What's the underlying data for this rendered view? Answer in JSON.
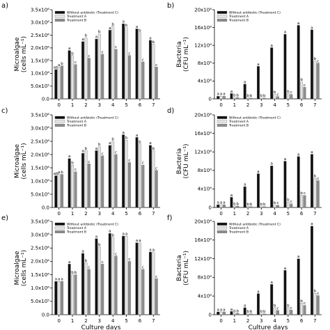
{
  "colors": {
    "treatment_c": "#111111",
    "treatment_a": "#e3e3e3",
    "treatment_b": "#8c8c8c",
    "bar_edge": "#555555"
  },
  "chart_data": [
    {
      "panel": "a)",
      "type": "bar",
      "ylabel": "Microalgae",
      "yunit": "(cells mL⁻¹)",
      "ylim": [
        0,
        3500000
      ],
      "yticks": [
        "0.0",
        "5.0x10⁵",
        "1.0x10⁶",
        "1.5x10⁶",
        "2.0x10⁶",
        "2.5x10⁶",
        "3.0x10⁶",
        "3.5x10⁶"
      ],
      "legend": [
        "Without antibiotic (Treatment C)",
        "Treatment A",
        "Treatment B"
      ],
      "categories": [
        "0",
        "1",
        "2",
        "3",
        "4",
        "5",
        "6",
        "7"
      ],
      "series": [
        {
          "name": "Without antibiotic (Treatment C)",
          "values": [
            1150000,
            1900000,
            2250000,
            2350000,
            2700000,
            2950000,
            2750000,
            2300000
          ],
          "labels": [
            "ab",
            "a",
            "a",
            "a",
            "a",
            "a",
            "a",
            "a"
          ]
        },
        {
          "name": "Treatment A",
          "values": [
            1250000,
            1700000,
            2400000,
            2550000,
            2850000,
            2800000,
            2600000,
            2150000
          ],
          "labels": [
            "a",
            "b",
            "b",
            "b",
            "b",
            "b",
            "b",
            "b"
          ]
        },
        {
          "name": "Treatment B",
          "values": [
            1300000,
            1350000,
            1600000,
            1750000,
            1950000,
            1700000,
            1450000,
            1250000
          ],
          "labels": [
            "b",
            "c",
            "c",
            "c",
            "c",
            "c",
            "c",
            "c"
          ]
        }
      ]
    },
    {
      "panel": "b)",
      "type": "bar",
      "ylabel": "Bacteria",
      "yunit": "(CFU mL⁻¹)",
      "ylim": [
        0,
        20000000
      ],
      "yticks": [
        "0",
        "4x10⁶",
        "8x10⁶",
        "12x10⁶",
        "16x10⁶",
        "20x10⁶"
      ],
      "legend": [
        "Without antibiotic (Treatment C)",
        "Treatment A",
        "Treatment B"
      ],
      "categories": [
        "0",
        "1",
        "2",
        "3",
        "4",
        "5",
        "6",
        "7"
      ],
      "series": [
        {
          "name": "Without antibiotic (Treatment C)",
          "values": [
            600000,
            1200000,
            3300000,
            7300000,
            11500000,
            14500000,
            16500000,
            15500000
          ],
          "labels": [
            "a",
            "a",
            "a",
            "a",
            "a",
            "a",
            "a",
            "a"
          ]
        },
        {
          "name": "Treatment A",
          "values": [
            600000,
            300000,
            200000,
            200000,
            1000000,
            1200000,
            3800000,
            8500000
          ],
          "labels": [
            "a",
            "b",
            "b",
            "b",
            "b",
            "b",
            "b",
            "b"
          ]
        },
        {
          "name": "Treatment B",
          "values": [
            600000,
            300000,
            200000,
            200000,
            500000,
            1000000,
            2600000,
            8000000
          ],
          "labels": [
            "a",
            "b",
            "b",
            "b",
            "c",
            "c",
            "c",
            "c"
          ]
        }
      ]
    },
    {
      "panel": "c)",
      "type": "bar",
      "ylabel": "Microalgae",
      "yunit": "(cells mL⁻¹)",
      "ylim": [
        0,
        3500000
      ],
      "yticks": [
        "0.0",
        "5.0x10⁵",
        "1.0x10⁶",
        "1.5x10⁶",
        "2.0x10⁶",
        "2.5x10⁶",
        "3.0x10⁶",
        "3.5x10⁶"
      ],
      "legend": [
        "Without antibiotic (Treatment C)",
        "Treatment A",
        "Treatment B"
      ],
      "categories": [
        "0",
        "1",
        "2",
        "3",
        "4",
        "5",
        "6",
        "7"
      ],
      "series": [
        {
          "name": "Without antibiotic (Treatment C)",
          "values": [
            1200000,
            1850000,
            2050000,
            2150000,
            2350000,
            2750000,
            2650000,
            2350000
          ],
          "labels": [
            "ab",
            "a",
            "a",
            "a",
            "a",
            "a",
            "a",
            "a"
          ]
        },
        {
          "name": "Treatment A",
          "values": [
            1250000,
            1600000,
            2150000,
            2300000,
            2500000,
            2550000,
            2400000,
            2150000
          ],
          "labels": [
            "a",
            "b",
            "b",
            "b",
            "b",
            "b",
            "b",
            "b"
          ]
        },
        {
          "name": "Treatment B",
          "values": [
            1250000,
            1350000,
            1650000,
            1950000,
            2000000,
            1700000,
            1600000,
            1400000
          ],
          "labels": [
            "b",
            "c",
            "c",
            "c",
            "c",
            "c",
            "c",
            "c"
          ]
        }
      ]
    },
    {
      "panel": "d)",
      "type": "bar",
      "ylabel": "Bacteria",
      "yunit": "(CFU mL⁻¹)",
      "ylim": [
        0,
        20000000
      ],
      "yticks": [
        "0",
        "4x10⁶",
        "8x10⁶",
        "12x10⁶",
        "16x10⁶",
        "20x10⁶"
      ],
      "legend": [
        "Without antibiotic (Treatment C)",
        "Treatment A",
        "Treatment B"
      ],
      "categories": [
        "0",
        "1",
        "2",
        "3",
        "4",
        "5",
        "6",
        "7"
      ],
      "series": [
        {
          "name": "Without antibiotic (Treatment C)",
          "values": [
            600000,
            2200000,
            4500000,
            7300000,
            9000000,
            10000000,
            11000000,
            11500000
          ],
          "labels": [
            "a",
            "a",
            "a",
            "a",
            "a",
            "a",
            "a",
            "a"
          ]
        },
        {
          "name": "Treatment A",
          "values": [
            600000,
            300000,
            200000,
            200000,
            500000,
            1200000,
            2600000,
            6300000
          ],
          "labels": [
            "a",
            "b",
            "b",
            "b",
            "b",
            "b",
            "b",
            "b"
          ]
        },
        {
          "name": "Treatment B",
          "values": [
            600000,
            300000,
            200000,
            200000,
            500000,
            800000,
            2600000,
            5800000
          ],
          "labels": [
            "a",
            "b",
            "b",
            "b",
            "c",
            "c",
            "c",
            "c"
          ]
        }
      ]
    },
    {
      "panel": "e)",
      "type": "bar",
      "ylabel": "Microalgae",
      "yunit": "(cells mL⁻¹)",
      "ylim": [
        0,
        3500000
      ],
      "yticks": [
        "0.0",
        "5.0x10⁵",
        "1.0x10⁶",
        "1.5x10⁶",
        "2.0x10⁶",
        "2.5x10⁶",
        "3.0x10⁶",
        "3.5x10⁶"
      ],
      "legend": [
        "Without antibiotic (Treatment C)",
        "Treatment A",
        "Treatment B"
      ],
      "categories": [
        "0",
        "1",
        "2",
        "3",
        "4",
        "5",
        "6",
        "7"
      ],
      "series": [
        {
          "name": "Without antibiotic (Treatment C)",
          "values": [
            1250000,
            1900000,
            2300000,
            2850000,
            3050000,
            2950000,
            2700000,
            2350000
          ],
          "labels": [
            "a",
            "a",
            "a",
            "a",
            "a",
            "a",
            "a",
            "a"
          ]
        },
        {
          "name": "Treatment A",
          "values": [
            1250000,
            1500000,
            1950000,
            2550000,
            2900000,
            2950000,
            2700000,
            2350000
          ],
          "labels": [
            "a",
            "b",
            "b",
            "b",
            "b",
            "a",
            "a",
            "a"
          ]
        },
        {
          "name": "Treatment B",
          "values": [
            1250000,
            1500000,
            1700000,
            1900000,
            2200000,
            2000000,
            1700000,
            1350000
          ],
          "labels": [
            "a",
            "b",
            "c",
            "c",
            "c",
            "c",
            "c",
            "c"
          ]
        }
      ]
    },
    {
      "panel": "f)",
      "type": "bar",
      "ylabel": "Bacteria",
      "yunit": "(CFU mL⁻¹)",
      "ylim": [
        0,
        20000000
      ],
      "yticks": [
        "0",
        "4x10⁶",
        "8x10⁶",
        "12x10⁶",
        "16x10⁶",
        "20x10⁶"
      ],
      "legend": [
        "Without antibiotic (Treatment C)",
        "Treatment A",
        "Treatment B"
      ],
      "categories": [
        "0",
        "1",
        "2",
        "3",
        "4",
        "5",
        "6",
        "7"
      ],
      "series": [
        {
          "name": "Without antibiotic (Treatment C)",
          "values": [
            600000,
            700000,
            1500000,
            4500000,
            6500000,
            9500000,
            12000000,
            19000000
          ],
          "labels": [
            "a",
            "a",
            "a",
            "a",
            "a",
            "a",
            "a",
            "a"
          ]
        },
        {
          "name": "Treatment A",
          "values": [
            600000,
            300000,
            200000,
            200000,
            1500000,
            1500000,
            2500000,
            4600000
          ],
          "labels": [
            "a",
            "b",
            "b",
            "b",
            "b",
            "b",
            "b",
            "b"
          ]
        },
        {
          "name": "Treatment B",
          "values": [
            600000,
            300000,
            200000,
            200000,
            900000,
            1000000,
            2000000,
            4100000
          ],
          "labels": [
            "a",
            "b",
            "b",
            "b",
            "c",
            "c",
            "c",
            "c"
          ]
        }
      ]
    }
  ],
  "xlabel_bottom": "Culture days"
}
